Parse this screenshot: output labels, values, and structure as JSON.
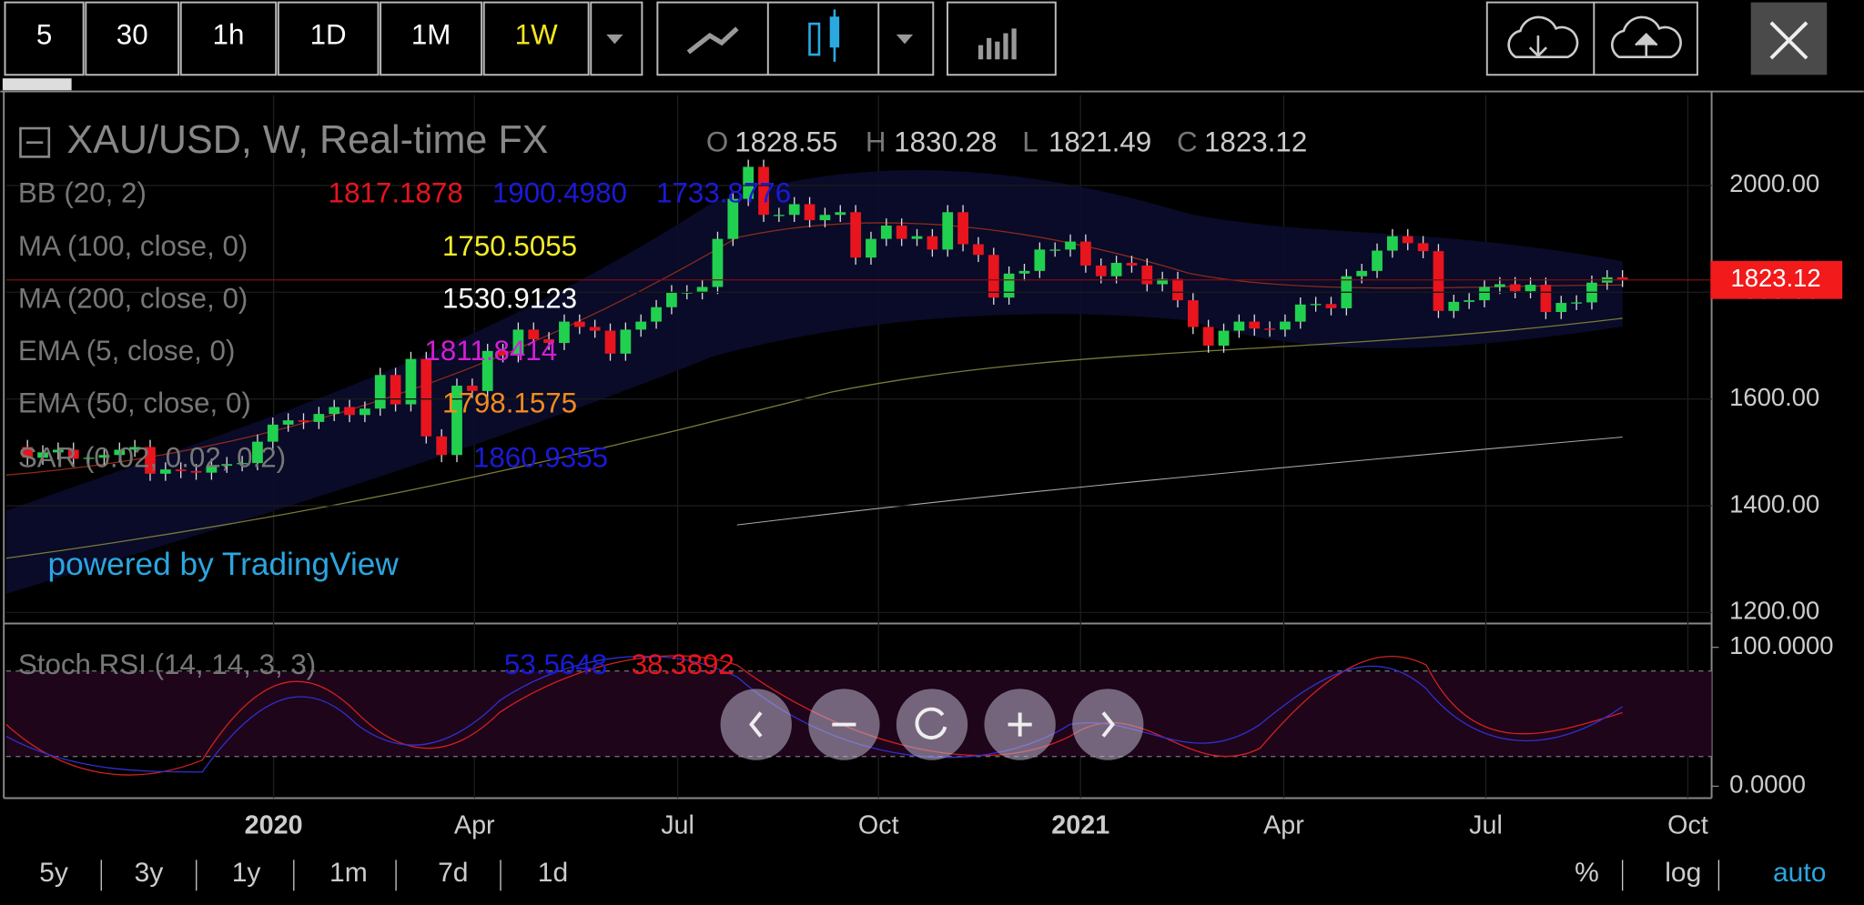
{
  "toolbar": {
    "intervals": [
      "5",
      "30",
      "1h",
      "1D",
      "1M",
      "1W"
    ]
  },
  "legend": {
    "symbol": "XAU/USD, W, Real-time FX",
    "ohlc": [
      [
        "O",
        "1828.55"
      ],
      [
        "H",
        "1830.28"
      ],
      [
        "L",
        "1821.49"
      ],
      [
        "C",
        "1823.12"
      ]
    ],
    "indicators": [
      {
        "name": "BB (20, 2)",
        "values": [
          "1817.1878",
          "1900.4980",
          "1733.8776"
        ]
      },
      {
        "name": "MA (100, close, 0)",
        "values": [
          "1750.5055"
        ]
      },
      {
        "name": "MA (200, close, 0)",
        "values": [
          "1530.9123"
        ]
      },
      {
        "name": "EMA (5, close, 0)",
        "values": [
          "1811.8414"
        ]
      },
      {
        "name": "EMA (50, close, 0)",
        "values": [
          "1798.1575"
        ]
      },
      {
        "name": "SAR (0.02, 0.02, 0.2)",
        "values": [
          "1860.9355"
        ]
      }
    ]
  },
  "watermark": "powered by TradingView",
  "chart_data": {
    "type": "candlestick",
    "close": [
      1510,
      1490,
      1500,
      1505,
      1488,
      1490,
      1495,
      1505,
      1510,
      1460,
      1468,
      1465,
      1462,
      1475,
      1478,
      1480,
      1520,
      1552,
      1560,
      1557,
      1572,
      1585,
      1570,
      1582,
      1645,
      1590,
      1675,
      1530,
      1495,
      1625,
      1615,
      1690,
      1682,
      1730,
      1712,
      1705,
      1745,
      1735,
      1728,
      1685,
      1730,
      1745,
      1772,
      1800,
      1800,
      1810,
      1900,
      1975,
      2035,
      1945,
      1945,
      1965,
      1935,
      1945,
      1950,
      1865,
      1900,
      1925,
      1900,
      1905,
      1880,
      1950,
      1890,
      1870,
      1790,
      1835,
      1840,
      1880,
      1880,
      1895,
      1850,
      1830,
      1855,
      1850,
      1815,
      1825,
      1785,
      1735,
      1700,
      1728,
      1745,
      1732,
      1730,
      1745,
      1777,
      1778,
      1770,
      1830,
      1840,
      1878,
      1905,
      1892,
      1877,
      1765,
      1782,
      1785,
      1810,
      1815,
      1802,
      1814,
      1763,
      1780,
      1781,
      1818,
      1828,
      1823.12
    ],
    "up_color": "#22d04f",
    "down_color": "#e8141e",
    "ylim": [
      1186,
      2174
    ],
    "yticks": [
      {
        "value": 2000,
        "label": "2000.00"
      },
      {
        "value": 1800,
        "label": "1800.00"
      },
      {
        "value": 1600,
        "label": "1600.00"
      },
      {
        "value": 1400,
        "label": "1400.00"
      },
      {
        "value": 1200,
        "label": "1200.00"
      }
    ],
    "last_price": {
      "value": 1823.12,
      "label": "1823.12"
    },
    "xtick_labels": [
      "2020",
      "Apr",
      "Jul",
      "Oct",
      "2021",
      "Apr",
      "Jul",
      "Oct"
    ]
  },
  "stoch_rsi": {
    "title": "Stoch RSI (14, 14, 3, 3)",
    "values": [
      "53.5648",
      "38.3892"
    ],
    "yticks": [
      {
        "value": 100,
        "label": "100.0000"
      },
      {
        "value": 0,
        "label": "0.0000"
      }
    ]
  },
  "range_buttons": [
    "5y",
    "3y",
    "1y",
    "1m",
    "7d",
    "1d"
  ],
  "scale_buttons": [
    "%",
    "log",
    "auto"
  ]
}
